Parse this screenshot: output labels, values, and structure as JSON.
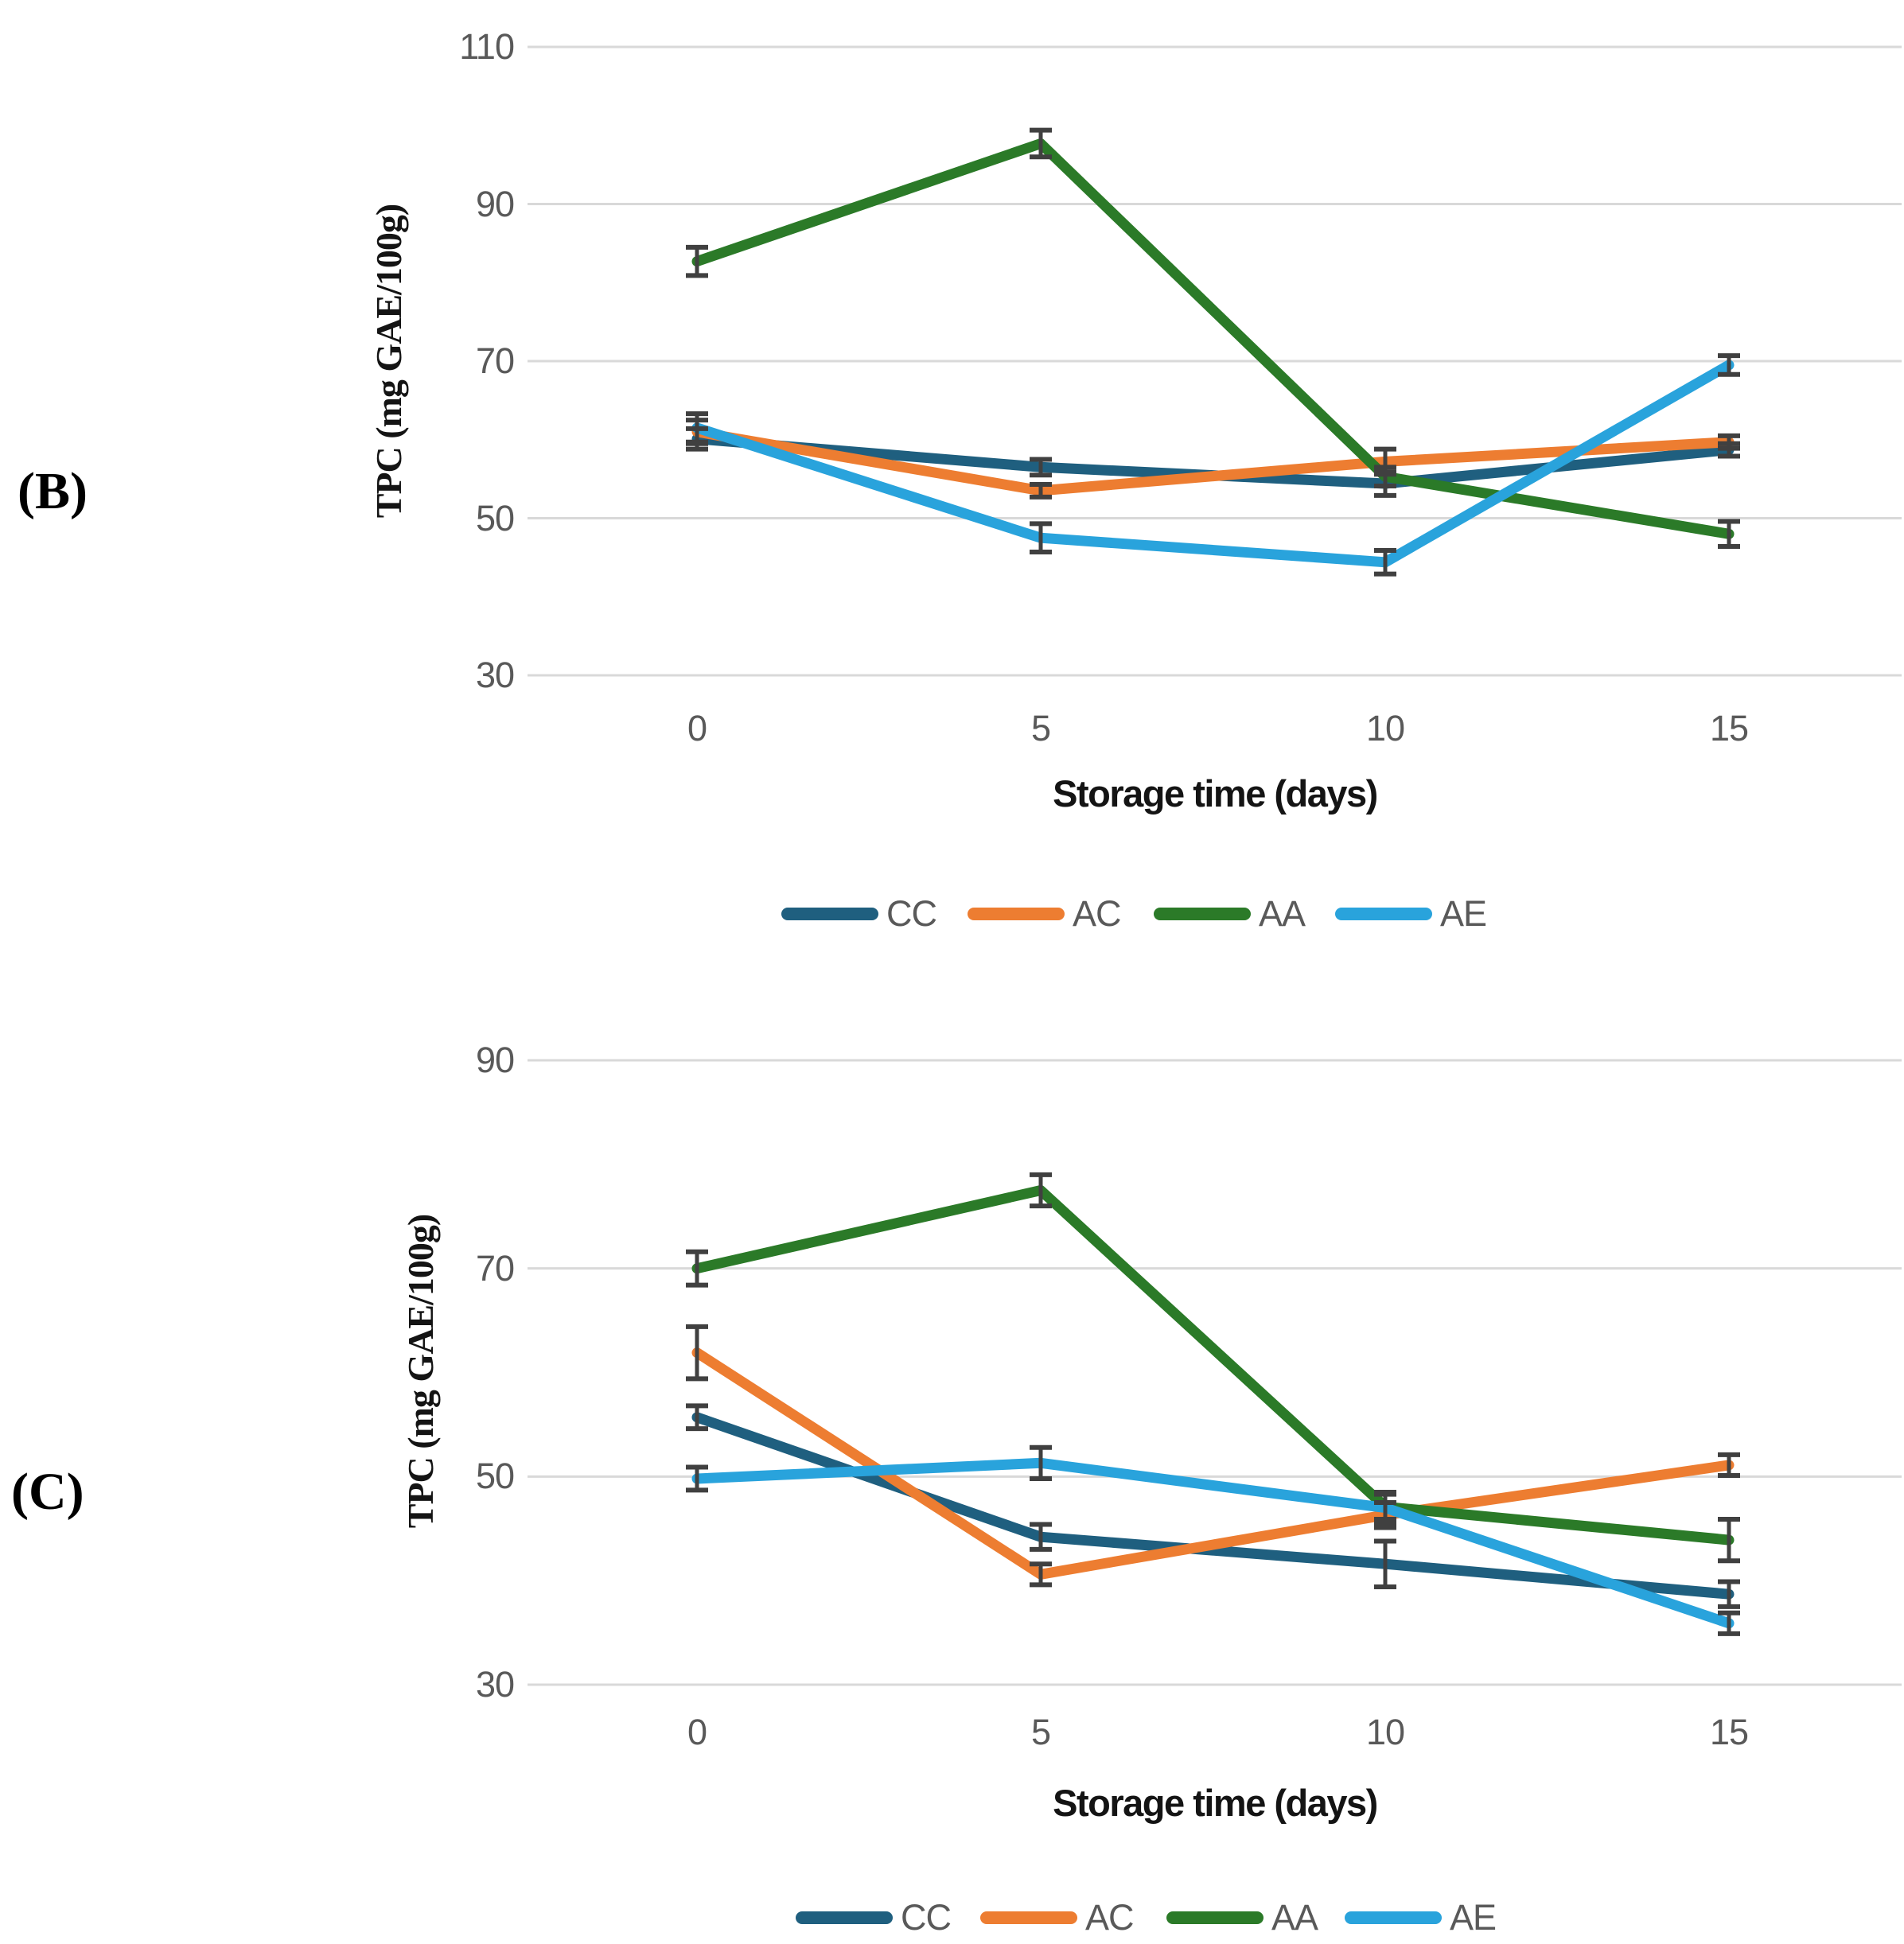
{
  "figure": {
    "description": "Two stacked line charts of total phenolic content over storage time",
    "background_color": "#ffffff",
    "grid_color": "#d9d9d9",
    "tick_text_color": "#595959",
    "error_bar_color": "#404040"
  },
  "chart_data": [
    {
      "type": "line",
      "panel_label": "(B)",
      "x": [
        0,
        5,
        10,
        15
      ],
      "xticklabels": [
        "0",
        "5",
        "10",
        "15"
      ],
      "xlabel": "Storage time (days)",
      "ylabel": "TPC (mg GAE/100g)",
      "ylim": [
        30,
        110
      ],
      "yticks": [
        110,
        90,
        70,
        50,
        30
      ],
      "grid": true,
      "legend_position": "bottom",
      "series": [
        {
          "name": "CC",
          "color": "#1F5F7F",
          "values": [
            60.1,
            56.5,
            54.4,
            58.7
          ],
          "errors": [
            1.3,
            1.0,
            1.5,
            0.8
          ]
        },
        {
          "name": "AC",
          "color": "#ED7D31",
          "values": [
            61.0,
            53.5,
            57.2,
            59.7
          ],
          "errors": [
            1.5,
            0.8,
            1.6,
            0.8
          ]
        },
        {
          "name": "AA",
          "color": "#2B7A28",
          "values": [
            82.7,
            97.7,
            55.3,
            48.0
          ],
          "errors": [
            1.8,
            1.7,
            1.2,
            1.6
          ]
        },
        {
          "name": "AE",
          "color": "#29A3DC",
          "values": [
            61.5,
            47.5,
            44.4,
            69.5
          ],
          "errors": [
            1.8,
            1.8,
            1.5,
            1.2
          ]
        }
      ]
    },
    {
      "type": "line",
      "panel_label": "(C)",
      "x": [
        0,
        5,
        10,
        15
      ],
      "xticklabels": [
        "0",
        "5",
        "10",
        "15"
      ],
      "xlabel": "Storage time (days)",
      "ylabel": "TPC (mg GAE/100g)",
      "ylim": [
        30,
        90
      ],
      "yticks": [
        90,
        70,
        50,
        30
      ],
      "grid": true,
      "legend_position": "bottom",
      "series": [
        {
          "name": "CC",
          "color": "#1F5F7F",
          "values": [
            55.7,
            44.2,
            41.6,
            38.7
          ],
          "errors": [
            1.1,
            1.2,
            2.2,
            1.2
          ]
        },
        {
          "name": "AC",
          "color": "#ED7D31",
          "values": [
            61.9,
            40.6,
            46.3,
            51.1
          ],
          "errors": [
            2.5,
            1.0,
            1.2,
            1.0
          ]
        },
        {
          "name": "AA",
          "color": "#2B7A28",
          "values": [
            70.0,
            77.5,
            47.1,
            43.9
          ],
          "errors": [
            1.6,
            1.5,
            1.2,
            2.0
          ]
        },
        {
          "name": "AE",
          "color": "#29A3DC",
          "values": [
            49.8,
            51.3,
            47.0,
            35.9
          ],
          "errors": [
            1.1,
            1.5,
            1.5,
            1.0
          ]
        }
      ]
    }
  ]
}
